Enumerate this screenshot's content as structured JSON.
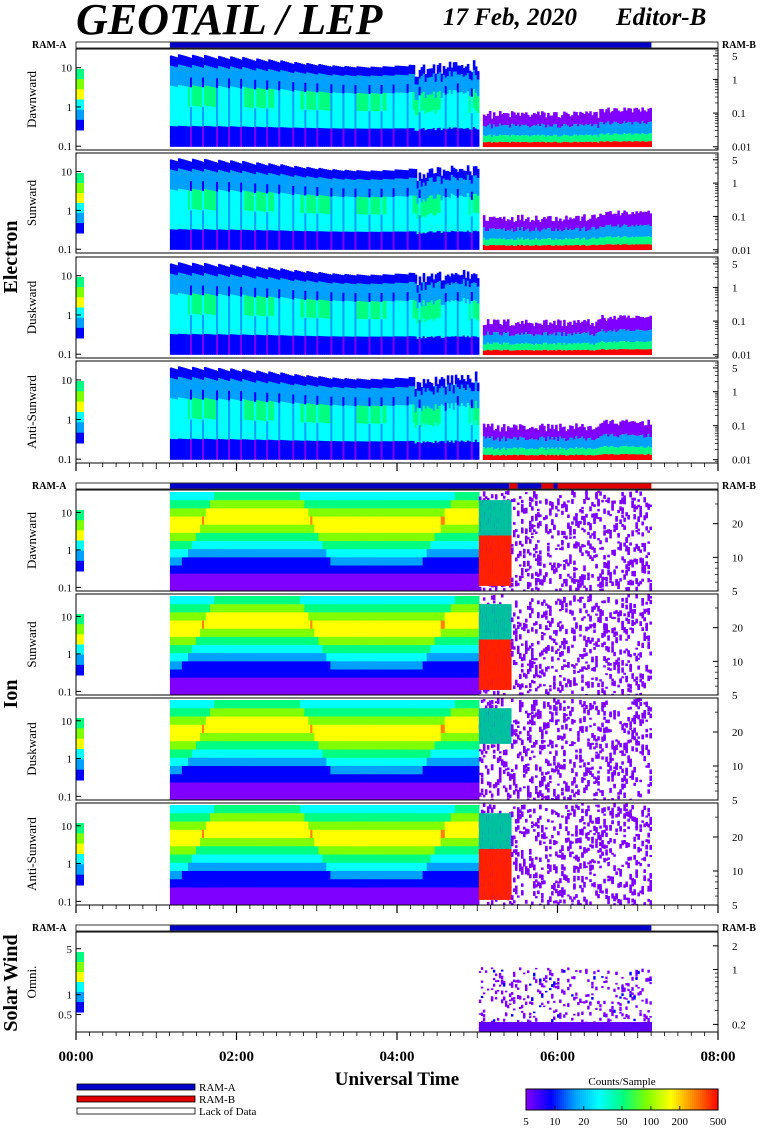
{
  "header": {
    "title": "GEOTAIL / LEP",
    "date": "17 Feb, 2020",
    "editor": "Editor-B"
  },
  "ram_labels": {
    "left": "RAM-A",
    "right": "RAM-B"
  },
  "colors": {
    "ram_a": "#0000c8",
    "ram_b": "#e00000",
    "lack": "#ffffff"
  },
  "groups": [
    {
      "name": "Electron",
      "ram_bar_segments": [
        [
          "lack",
          0,
          1.17
        ],
        [
          "ram_a",
          1.17,
          7.17
        ],
        [
          "lack",
          7.17,
          8
        ]
      ]
    },
    {
      "name": "Ion",
      "ram_bar_segments": [
        [
          "lack",
          0,
          1.17
        ],
        [
          "ram_a",
          1.17,
          5.4
        ],
        [
          "ram_b",
          5.4,
          5.5
        ],
        [
          "ram_a",
          5.5,
          5.8
        ],
        [
          "ram_b",
          5.8,
          5.95
        ],
        [
          "ram_a",
          5.95,
          6.0
        ],
        [
          "ram_b",
          6.0,
          7.17
        ],
        [
          "lack",
          7.17,
          8
        ]
      ]
    },
    {
      "name": "Solar Wind",
      "ram_bar_segments": [
        [
          "lack",
          0,
          1.17
        ],
        [
          "ram_a",
          1.17,
          7.17
        ],
        [
          "lack",
          7.17,
          8
        ]
      ]
    }
  ],
  "chart_data": {
    "type": "heatmap",
    "x_axis": {
      "label": "Universal Time",
      "range": [
        "00:00",
        "08:00"
      ],
      "range_hours": [
        0,
        8
      ],
      "tick_labels": [
        "00:00",
        "02:00",
        "04:00",
        "06:00",
        "08:00"
      ]
    },
    "panels": [
      {
        "group": "Electron",
        "label": "Dawnward",
        "species": "electron",
        "left_ticks": [
          "10",
          "1",
          "0.1"
        ],
        "left_tick_values": [
          10,
          1,
          0.1
        ],
        "left_range": [
          0.08,
          30
        ],
        "right_ticks": [
          "5",
          "1",
          "0.1",
          "0.01"
        ],
        "right_tick_values": [
          5,
          1,
          0.1,
          0.01
        ],
        "right_range": [
          0.008,
          8
        ]
      },
      {
        "group": "Electron",
        "label": "Sunward",
        "species": "electron",
        "left_ticks": [
          "10",
          "1",
          "0.1"
        ],
        "left_tick_values": [
          10,
          1,
          0.1
        ],
        "left_range": [
          0.08,
          30
        ],
        "right_ticks": [
          "5",
          "1",
          "0.1",
          "0.01"
        ],
        "right_tick_values": [
          5,
          1,
          0.1,
          0.01
        ],
        "right_range": [
          0.008,
          8
        ]
      },
      {
        "group": "Electron",
        "label": "Duskward",
        "species": "electron",
        "left_ticks": [
          "10",
          "1",
          "0.1"
        ],
        "left_tick_values": [
          10,
          1,
          0.1
        ],
        "left_range": [
          0.08,
          30
        ],
        "right_ticks": [
          "5",
          "1",
          "0.1",
          "0.01"
        ],
        "right_tick_values": [
          5,
          1,
          0.1,
          0.01
        ],
        "right_range": [
          0.008,
          8
        ]
      },
      {
        "group": "Electron",
        "label": "Anti-Sunward",
        "species": "electron",
        "left_ticks": [
          "10",
          "1",
          "0.1"
        ],
        "left_tick_values": [
          10,
          1,
          0.1
        ],
        "left_range": [
          0.08,
          30
        ],
        "right_ticks": [
          "5",
          "1",
          "0.1",
          "0.01"
        ],
        "right_tick_values": [
          5,
          1,
          0.1,
          0.01
        ],
        "right_range": [
          0.008,
          8
        ]
      },
      {
        "group": "Ion",
        "label": "Dawnward",
        "species": "ion",
        "left_ticks": [
          "10",
          "1",
          "0.1"
        ],
        "left_tick_values": [
          10,
          1,
          0.1
        ],
        "left_range": [
          0.08,
          40
        ],
        "right_ticks": [
          "20",
          "10",
          "5"
        ],
        "right_tick_values": [
          20,
          10,
          5
        ],
        "right_range": [
          5,
          40
        ]
      },
      {
        "group": "Ion",
        "label": "Sunward",
        "species": "ion",
        "left_ticks": [
          "10",
          "1",
          "0.1"
        ],
        "left_tick_values": [
          10,
          1,
          0.1
        ],
        "left_range": [
          0.08,
          40
        ],
        "right_ticks": [
          "20",
          "10",
          "5"
        ],
        "right_tick_values": [
          20,
          10,
          5
        ],
        "right_range": [
          5,
          40
        ]
      },
      {
        "group": "Ion",
        "label": "Duskward",
        "species": "ion",
        "left_ticks": [
          "10",
          "1",
          "0.1"
        ],
        "left_tick_values": [
          10,
          1,
          0.1
        ],
        "left_range": [
          0.08,
          40
        ],
        "right_ticks": [
          "20",
          "10",
          "5"
        ],
        "right_tick_values": [
          20,
          10,
          5
        ],
        "right_range": [
          5,
          40
        ]
      },
      {
        "group": "Ion",
        "label": "Anti-Sunward",
        "species": "ion",
        "left_ticks": [
          "10",
          "1",
          "0.1"
        ],
        "left_tick_values": [
          10,
          1,
          0.1
        ],
        "left_range": [
          0.08,
          40
        ],
        "right_ticks": [
          "20",
          "10",
          "5"
        ],
        "right_tick_values": [
          20,
          10,
          5
        ],
        "right_range": [
          5,
          40
        ]
      },
      {
        "group": "Solar Wind",
        "label": "Omni.",
        "species": "solarwind",
        "left_ticks": [
          "5",
          "1",
          "0.5"
        ],
        "left_tick_values": [
          5,
          1,
          0.5
        ],
        "left_range": [
          0.27,
          9
        ],
        "right_ticks": [
          "2",
          "1",
          "0.2"
        ],
        "right_tick_values": [
          2,
          1,
          0.2
        ],
        "right_range": [
          0.16,
          3
        ]
      }
    ],
    "data_coverage_hours": [
      1.17,
      7.17
    ],
    "legend": {
      "items": [
        {
          "label": "RAM-A",
          "color": "#0000c8"
        },
        {
          "label": "RAM-B",
          "color": "#e00000"
        },
        {
          "label": "Lack of Data",
          "color": "#ffffff"
        }
      ]
    },
    "colorbar": {
      "title": "Counts/Sample",
      "tick_labels": [
        "5",
        "10",
        "20",
        "50",
        "100",
        "200",
        "500"
      ],
      "tick_values": [
        5,
        10,
        20,
        50,
        100,
        200,
        500
      ],
      "range": [
        5,
        500
      ],
      "scale": "log",
      "colors": [
        "#8000ff",
        "#0000ff",
        "#00a0ff",
        "#00ffff",
        "#00ff80",
        "#80ff00",
        "#ffff00",
        "#ff8000",
        "#ff0000"
      ]
    }
  }
}
